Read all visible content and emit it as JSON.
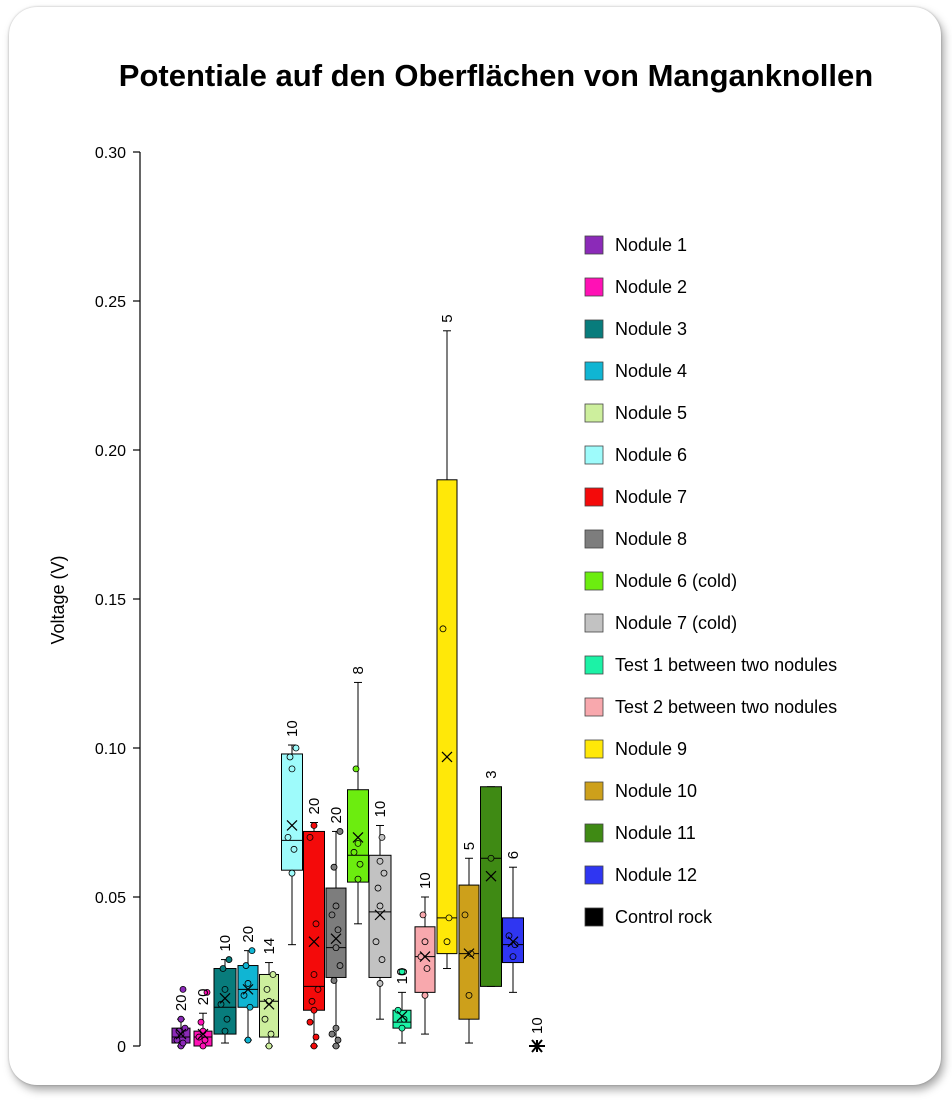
{
  "chart_data": {
    "type": "box",
    "title": "Potentiale auf den Oberflächen von Manganknollen",
    "ylabel": "Voltage (V)",
    "xlabel": "",
    "ylim": [
      0,
      0.3
    ],
    "yticks": [
      "0",
      "0.05",
      "0.10",
      "0.15",
      "0.20",
      "0.25",
      "0.30"
    ],
    "legend_position": "right",
    "series": [
      {
        "name": "Nodule 1",
        "color": "#8b2ab8",
        "n": "20",
        "min": 0.0,
        "q1": 0.001,
        "median": 0.003,
        "q3": 0.006,
        "max": 0.009,
        "mean": 0.004,
        "points": [
          0.0,
          0.001,
          0.002,
          0.004,
          0.005,
          0.006,
          0.009,
          0.019
        ]
      },
      {
        "name": "Nodule 2",
        "color": "#ff11b5",
        "n": "20",
        "min": 0.0,
        "q1": 0.0,
        "median": 0.003,
        "q3": 0.005,
        "max": 0.011,
        "mean": 0.004,
        "points": [
          0.0,
          0.002,
          0.003,
          0.005,
          0.008,
          0.018
        ]
      },
      {
        "name": "Nodule 3",
        "color": "#087c7c",
        "n": "10",
        "min": 0.001,
        "q1": 0.004,
        "median": 0.013,
        "q3": 0.026,
        "max": 0.029,
        "mean": 0.016,
        "points": [
          0.005,
          0.009,
          0.014,
          0.019,
          0.026,
          0.029
        ]
      },
      {
        "name": "Nodule 4",
        "color": "#10b5d3",
        "n": "20",
        "min": 0.002,
        "q1": 0.013,
        "median": 0.019,
        "q3": 0.027,
        "max": 0.032,
        "mean": 0.019,
        "points": [
          0.002,
          0.013,
          0.017,
          0.021,
          0.027,
          0.032
        ]
      },
      {
        "name": "Nodule 5",
        "color": "#cdef9d",
        "n": "14",
        "min": 0.0,
        "q1": 0.003,
        "median": 0.015,
        "q3": 0.024,
        "max": 0.028,
        "mean": 0.014,
        "points": [
          0.0,
          0.004,
          0.009,
          0.015,
          0.019,
          0.024
        ]
      },
      {
        "name": "Nodule 6",
        "color": "#9efbfb",
        "n": "10",
        "min": 0.034,
        "q1": 0.059,
        "median": 0.069,
        "q3": 0.098,
        "max": 0.101,
        "mean": 0.074,
        "points": [
          0.058,
          0.066,
          0.07,
          0.093,
          0.097,
          0.1
        ]
      },
      {
        "name": "Nodule 7",
        "color": "#f40a0a",
        "n": "20",
        "min": 0.0,
        "q1": 0.012,
        "median": 0.02,
        "q3": 0.072,
        "max": 0.075,
        "mean": 0.035,
        "points": [
          0.0,
          0.003,
          0.008,
          0.012,
          0.015,
          0.019,
          0.024,
          0.041,
          0.07,
          0.074
        ]
      },
      {
        "name": "Nodule 8",
        "color": "#7d7d7d",
        "n": "20",
        "min": 0.0,
        "q1": 0.023,
        "median": 0.033,
        "q3": 0.053,
        "max": 0.072,
        "mean": 0.036,
        "points": [
          0.0,
          0.002,
          0.004,
          0.006,
          0.022,
          0.027,
          0.033,
          0.039,
          0.044,
          0.047,
          0.06,
          0.072
        ]
      },
      {
        "name": "Nodule 6 (cold)",
        "color": "#6ced0f",
        "n": "8",
        "min": 0.041,
        "q1": 0.055,
        "median": 0.064,
        "q3": 0.086,
        "max": 0.122,
        "mean": 0.07,
        "points": [
          0.056,
          0.061,
          0.065,
          0.068,
          0.093
        ]
      },
      {
        "name": "Nodule 7 (cold)",
        "color": "#c2c2c2",
        "n": "10",
        "min": 0.009,
        "q1": 0.023,
        "median": 0.045,
        "q3": 0.064,
        "max": 0.074,
        "mean": 0.044,
        "points": [
          0.021,
          0.029,
          0.035,
          0.047,
          0.053,
          0.058,
          0.062,
          0.07
        ]
      },
      {
        "name": "Test 1 between two nodules",
        "color": "#1cf2a6",
        "n": "10",
        "min": 0.001,
        "q1": 0.006,
        "median": 0.008,
        "q3": 0.012,
        "max": 0.018,
        "mean": 0.01,
        "points": [
          0.006,
          0.009,
          0.012,
          0.025
        ]
      },
      {
        "name": "Test 2 between two nodules",
        "color": "#f8a8ad",
        "n": "10",
        "min": 0.004,
        "q1": 0.018,
        "median": 0.03,
        "q3": 0.04,
        "max": 0.05,
        "mean": 0.03,
        "points": [
          0.017,
          0.026,
          0.03,
          0.035,
          0.044
        ]
      },
      {
        "name": "Nodule 9",
        "color": "#ffe808",
        "n": "5",
        "min": 0.026,
        "q1": 0.031,
        "median": 0.043,
        "q3": 0.19,
        "max": 0.24,
        "mean": 0.097,
        "points": [
          0.035,
          0.043,
          0.14
        ]
      },
      {
        "name": "Nodule 10",
        "color": "#cda01b",
        "n": "5",
        "min": 0.001,
        "q1": 0.009,
        "median": 0.031,
        "q3": 0.054,
        "max": 0.063,
        "mean": 0.031,
        "points": [
          0.017,
          0.031,
          0.044
        ]
      },
      {
        "name": "Nodule 11",
        "color": "#3f8a14",
        "n": "3",
        "min": 0.02,
        "q1": 0.02,
        "median": 0.063,
        "q3": 0.087,
        "max": 0.087,
        "mean": 0.057,
        "points": [
          0.063
        ]
      },
      {
        "name": "Nodule 12",
        "color": "#2f36f2",
        "n": "6",
        "min": 0.018,
        "q1": 0.028,
        "median": 0.034,
        "q3": 0.043,
        "max": 0.06,
        "mean": 0.035,
        "points": [
          0.03,
          0.034,
          0.037
        ]
      },
      {
        "name": "Control rock",
        "color": "#000000",
        "n": "10",
        "min": 0.0,
        "q1": 0.0,
        "median": 0.0,
        "q3": 0.0,
        "max": 0.0,
        "mean": 0.0,
        "points": [
          0.0
        ]
      }
    ]
  }
}
